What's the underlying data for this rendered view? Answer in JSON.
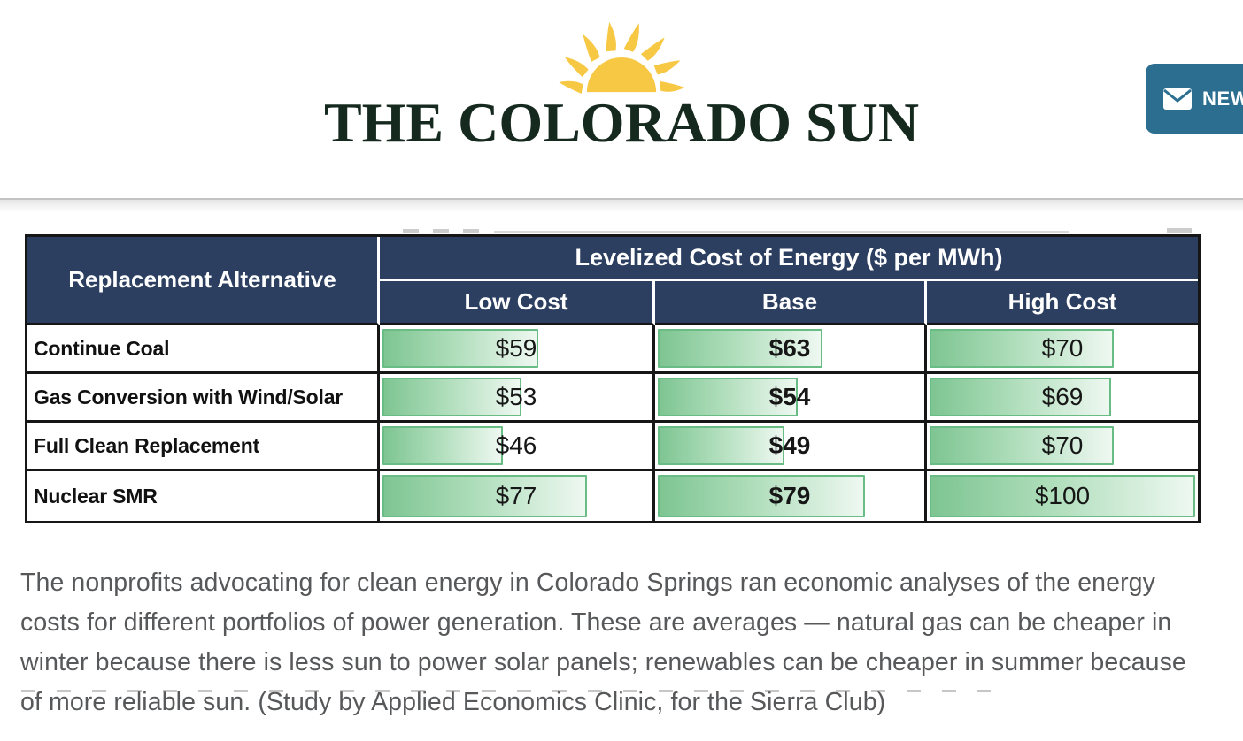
{
  "header": {
    "logo_text": "THE COLORADO SUN",
    "newsletter_label": "NEWSLETTERS"
  },
  "figure": {
    "table": {
      "corner_header": "Replacement Alternative",
      "group_header": "Levelized Cost of Energy ($ per MWh)",
      "sub_headers": [
        "Low Cost",
        "Base",
        "High Cost"
      ],
      "rows": [
        {
          "label": "Continue Coal",
          "values": [
            {
              "display": "$59",
              "value": 59
            },
            {
              "display": "$63",
              "value": 63
            },
            {
              "display": "$70",
              "value": 70
            }
          ]
        },
        {
          "label": "Gas Conversion with Wind/Solar",
          "values": [
            {
              "display": "$53",
              "value": 53
            },
            {
              "display": "$54",
              "value": 54
            },
            {
              "display": "$69",
              "value": 69
            }
          ]
        },
        {
          "label": "Full Clean Replacement",
          "values": [
            {
              "display": "$46",
              "value": 46
            },
            {
              "display": "$49",
              "value": 49
            },
            {
              "display": "$70",
              "value": 70
            }
          ]
        },
        {
          "label": "Nuclear SMR",
          "values": [
            {
              "display": "$77",
              "value": 77
            },
            {
              "display": "$79",
              "value": 79
            },
            {
              "display": "$100",
              "value": 100
            }
          ]
        }
      ]
    },
    "caption": "The nonprofits advocating for clean energy in Colorado Springs ran economic analyses of the energy costs for different portfolios of power generation. These are averages — natural gas can be cheaper in winter because there is less sun to power solar panels; renewables can be cheaper in summer because of more reliable sun. (Study by Applied Economics Clinic, for the Sierra Club)"
  },
  "chart_data": {
    "type": "table",
    "title": "Levelized Cost of Energy ($ per MWh)",
    "row_header": "Replacement Alternative",
    "categories": [
      "Continue Coal",
      "Gas Conversion with Wind/Solar",
      "Full Clean Replacement",
      "Nuclear SMR"
    ],
    "series": [
      {
        "name": "Low Cost",
        "values": [
          59,
          53,
          46,
          77
        ]
      },
      {
        "name": "Base",
        "values": [
          63,
          54,
          49,
          79
        ]
      },
      {
        "name": "High Cost",
        "values": [
          70,
          69,
          70,
          100
        ]
      }
    ],
    "units": "$ per MWh",
    "bar_scale": [
      0,
      100
    ],
    "notes": "each cell contains a horizontal green gradient data bar proportional to its value; Base column values are bold"
  },
  "colors": {
    "navy": "#2c3f60",
    "bar_border": "#6abc85",
    "bar_fill": "#7ec592",
    "button_teal": "#2b6e90",
    "sun_yellow": "#f6c844",
    "logo_green": "#16291f",
    "caption_gray": "#57585a"
  }
}
